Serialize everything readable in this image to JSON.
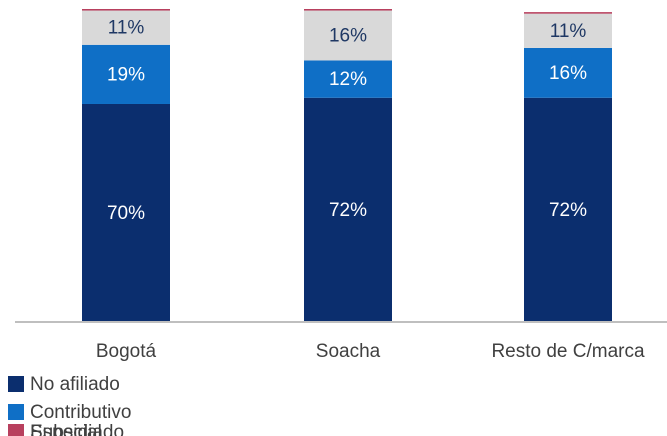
{
  "chart_data": {
    "type": "stacked_bar",
    "categories": [
      "Bogotá",
      "Soacha",
      "Resto de C/marca"
    ],
    "series": [
      {
        "name": "No afiliado",
        "color": "#0b2e6e",
        "values": [
          70,
          72,
          72
        ],
        "value_labels": [
          "70%",
          "72%",
          "72%"
        ],
        "label_color": "#ffffff"
      },
      {
        "name": "Contributivo",
        "color": "#0f6fc6",
        "values": [
          19,
          12,
          16
        ],
        "value_labels": [
          "19%",
          "12%",
          "16%"
        ],
        "label_color": "#ffffff"
      },
      {
        "name": "Subsidiado",
        "color": "#d9d9d9",
        "values": [
          11,
          16,
          11
        ],
        "value_labels": [
          "11%",
          "16%",
          "11%"
        ],
        "label_color": "#1f3864"
      },
      {
        "name": "Especial",
        "color": "#b8405e",
        "values": [
          0.5,
          0.5,
          0.5
        ]
      }
    ],
    "ylim": [
      0,
      100.5
    ],
    "legend": "bottom-left"
  }
}
